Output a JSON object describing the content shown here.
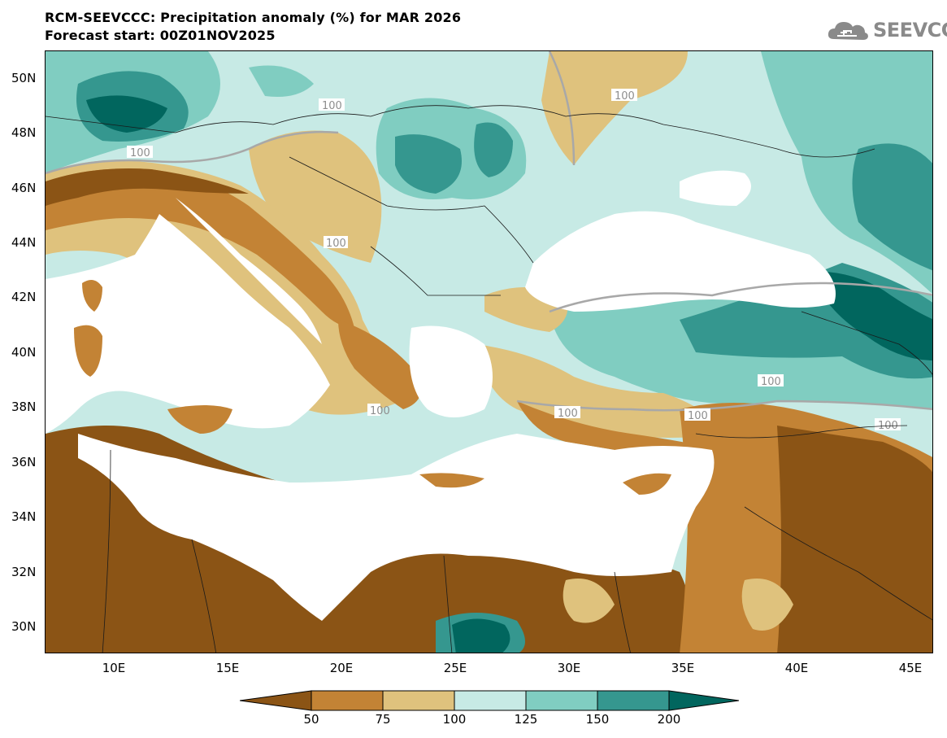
{
  "header": {
    "title": "RCM-SEEVCCC: Precipitation anomaly (%) for MAR 2026",
    "subtitle": "Forecast start: 00Z01NOV2025",
    "logo_text": "SEEVCCC",
    "logo_icon": "cloud-icon"
  },
  "axes": {
    "y_ticks": [
      "50N",
      "48N",
      "46N",
      "44N",
      "42N",
      "40N",
      "38N",
      "36N",
      "34N",
      "32N",
      "30N"
    ],
    "x_ticks": [
      "10E",
      "15E",
      "20E",
      "25E",
      "30E",
      "35E",
      "40E",
      "45E"
    ]
  },
  "contour_labels": [
    "100",
    "100",
    "100",
    "100",
    "100",
    "100",
    "100",
    "100",
    "100"
  ],
  "colorbar": {
    "labels": [
      "50",
      "75",
      "100",
      "125",
      "150",
      "200"
    ],
    "colors": [
      "#8b5415",
      "#c38335",
      "#dfc27d",
      "#c7eae5",
      "#80cdc1",
      "#35978f",
      "#01665e"
    ]
  },
  "colors": {
    "sea": "#ffffff",
    "very_dry": "#8b5415",
    "dry": "#c38335",
    "slightly_dry": "#dfc27d",
    "slightly_wet": "#c7eae5",
    "wet": "#80cdc1",
    "very_wet": "#35978f",
    "extreme_wet": "#01665e",
    "contour_100": "#a8a8a8"
  }
}
